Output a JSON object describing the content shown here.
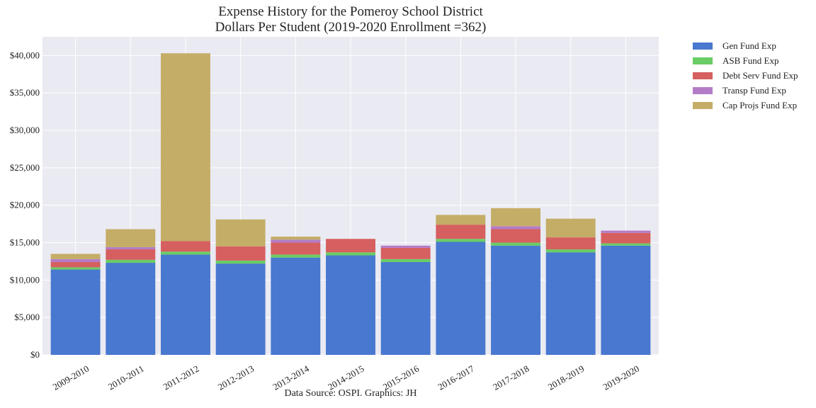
{
  "chart_data": {
    "type": "bar",
    "stacked": true,
    "title": "Expense History for the Pomeroy School District",
    "subtitle": "Dollars Per Student (2019-2020 Enrollment =362)",
    "xlabel": "",
    "ylabel": "",
    "ylim": [
      0,
      42500
    ],
    "y_ticks": [
      0,
      5000,
      10000,
      15000,
      20000,
      25000,
      30000,
      35000,
      40000
    ],
    "y_tick_labels": [
      "$0",
      "$5,000",
      "$10,000",
      "$15,000",
      "$20,000",
      "$25,000",
      "$30,000",
      "$35,000",
      "$40,000"
    ],
    "grid": true,
    "legend_position": "outside-top-right",
    "categories": [
      "2009-2010",
      "2010-2011",
      "2011-2012",
      "2012-2013",
      "2013-2014",
      "2014-2015",
      "2015-2016",
      "2016-2017",
      "2017-2018",
      "2018-2019",
      "2019-2020"
    ],
    "series": [
      {
        "name": "Gen Fund Exp",
        "color": "#4878cf",
        "values": [
          11400,
          12300,
          13400,
          12200,
          13000,
          13300,
          12400,
          15100,
          14600,
          13700,
          14600
        ]
      },
      {
        "name": "ASB Fund Exp",
        "color": "#6acc65",
        "values": [
          300,
          400,
          400,
          400,
          400,
          400,
          400,
          400,
          400,
          400,
          300
        ]
      },
      {
        "name": "Debt Serv Fund Exp",
        "color": "#d65f5f",
        "values": [
          700,
          1400,
          1400,
          1900,
          1600,
          1800,
          1500,
          1900,
          1800,
          1600,
          1400
        ]
      },
      {
        "name": "Transp Fund Exp",
        "color": "#b47cc7",
        "values": [
          400,
          300,
          0,
          0,
          400,
          0,
          300,
          0,
          400,
          0,
          300
        ]
      },
      {
        "name": "Cap Projs Fund Exp",
        "color": "#c4ad66",
        "values": [
          700,
          2400,
          25100,
          3600,
          400,
          0,
          0,
          1300,
          2400,
          2500,
          0
        ]
      }
    ]
  },
  "footer": {
    "source": "Data Source: OSPI. Graphics: JH"
  }
}
